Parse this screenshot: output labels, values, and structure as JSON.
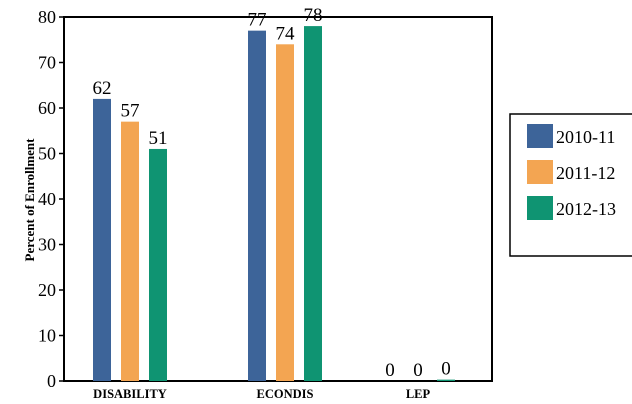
{
  "chart_data": {
    "type": "bar",
    "ylabel": "Percent of Enrollment",
    "xlabel": "",
    "ylim": [
      0,
      80
    ],
    "yticks": [
      "0",
      "10",
      "20",
      "30",
      "40",
      "50",
      "60",
      "70",
      "80"
    ],
    "categories": [
      "DISABILITY",
      "ECONDIS",
      "LEP"
    ],
    "series": [
      {
        "name": "2010-11",
        "color": "#3d6499",
        "values": [
          62,
          77,
          0
        ],
        "labels": [
          "62",
          "77",
          "0"
        ]
      },
      {
        "name": "2011-12",
        "color": "#f3a552",
        "values": [
          57,
          74,
          0
        ],
        "labels": [
          "57",
          "74",
          "0"
        ]
      },
      {
        "name": "2012-13",
        "color": "#0f9472",
        "values": [
          51,
          78,
          0.3
        ],
        "labels": [
          "51",
          "78",
          "0"
        ]
      }
    ],
    "grid": false,
    "legend_position": "right"
  }
}
